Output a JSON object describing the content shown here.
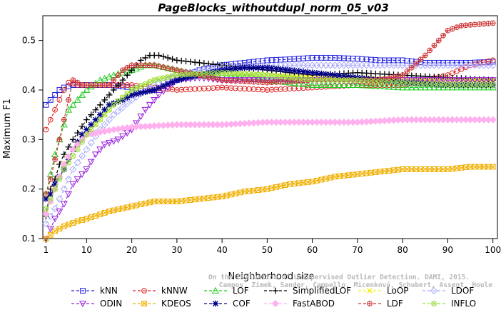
{
  "chart_data": {
    "type": "line",
    "title": "PageBlocks_withoutdupl_norm_05_v03",
    "xlabel": "Neighborhood size",
    "ylabel": "Maximum F1",
    "xlim": [
      1,
      100
    ],
    "ylim": [
      0.1,
      0.55
    ],
    "xticks": [
      1,
      10,
      20,
      30,
      40,
      50,
      60,
      70,
      80,
      90,
      100
    ],
    "yticks": [
      0.1,
      0.2,
      0.3,
      0.4,
      0.5
    ],
    "grid": false,
    "legend_placement": "bottom",
    "watermark": [
      "Campos, Zimek, Sander, Campello, Micenková, Schubert, Assent, Houle",
      "On the Evaluation of Unsupervised Outlier Detection. DAMI, 2015."
    ],
    "series": [
      {
        "name": "kNN",
        "color": "#2222dd",
        "marker": "square",
        "points": [
          [
            1,
            0.37
          ],
          [
            2,
            0.38
          ],
          [
            3,
            0.39
          ],
          [
            4,
            0.4
          ],
          [
            5,
            0.405
          ],
          [
            7,
            0.41
          ],
          [
            10,
            0.41
          ],
          [
            15,
            0.41
          ],
          [
            20,
            0.405
          ],
          [
            25,
            0.4
          ],
          [
            30,
            0.42
          ],
          [
            35,
            0.44
          ],
          [
            40,
            0.45
          ],
          [
            45,
            0.455
          ],
          [
            50,
            0.46
          ],
          [
            55,
            0.462
          ],
          [
            60,
            0.465
          ],
          [
            65,
            0.465
          ],
          [
            70,
            0.463
          ],
          [
            75,
            0.46
          ],
          [
            80,
            0.46
          ],
          [
            85,
            0.455
          ],
          [
            90,
            0.455
          ],
          [
            95,
            0.455
          ],
          [
            100,
            0.457
          ]
        ]
      },
      {
        "name": "kNNW",
        "color": "#dd2222",
        "marker": "circle",
        "points": [
          [
            1,
            0.32
          ],
          [
            2,
            0.34
          ],
          [
            3,
            0.36
          ],
          [
            4,
            0.38
          ],
          [
            5,
            0.4
          ],
          [
            6,
            0.415
          ],
          [
            8,
            0.41
          ],
          [
            10,
            0.41
          ],
          [
            15,
            0.41
          ],
          [
            20,
            0.41
          ],
          [
            25,
            0.405
          ],
          [
            30,
            0.4
          ],
          [
            40,
            0.405
          ],
          [
            50,
            0.4
          ],
          [
            60,
            0.405
          ],
          [
            70,
            0.41
          ],
          [
            80,
            0.41
          ],
          [
            85,
            0.42
          ],
          [
            90,
            0.43
          ],
          [
            95,
            0.45
          ],
          [
            100,
            0.46
          ]
        ]
      },
      {
        "name": "LOF",
        "color": "#22cc22",
        "marker": "triangle-up",
        "points": [
          [
            1,
            0.19
          ],
          [
            2,
            0.23
          ],
          [
            3,
            0.27
          ],
          [
            4,
            0.3
          ],
          [
            5,
            0.33
          ],
          [
            6,
            0.36
          ],
          [
            8,
            0.38
          ],
          [
            10,
            0.4
          ],
          [
            13,
            0.42
          ],
          [
            16,
            0.43
          ],
          [
            20,
            0.44
          ],
          [
            23,
            0.45
          ],
          [
            25,
            0.45
          ],
          [
            30,
            0.44
          ],
          [
            35,
            0.43
          ],
          [
            40,
            0.43
          ],
          [
            50,
            0.42
          ],
          [
            60,
            0.41
          ],
          [
            70,
            0.41
          ],
          [
            80,
            0.405
          ],
          [
            90,
            0.405
          ],
          [
            100,
            0.405
          ]
        ]
      },
      {
        "name": "SimplifiedLOF",
        "color": "#000000",
        "marker": "plus",
        "points": [
          [
            1,
            0.145
          ],
          [
            2,
            0.2
          ],
          [
            3,
            0.22
          ],
          [
            4,
            0.25
          ],
          [
            5,
            0.27
          ],
          [
            7,
            0.3
          ],
          [
            10,
            0.34
          ],
          [
            12,
            0.36
          ],
          [
            15,
            0.39
          ],
          [
            18,
            0.42
          ],
          [
            20,
            0.44
          ],
          [
            22,
            0.46
          ],
          [
            24,
            0.47
          ],
          [
            26,
            0.47
          ],
          [
            28,
            0.465
          ],
          [
            30,
            0.46
          ],
          [
            35,
            0.455
          ],
          [
            40,
            0.45
          ],
          [
            50,
            0.44
          ],
          [
            60,
            0.43
          ],
          [
            70,
            0.435
          ],
          [
            80,
            0.43
          ],
          [
            90,
            0.425
          ],
          [
            100,
            0.42
          ]
        ]
      },
      {
        "name": "LoOP",
        "color": "#eeee00",
        "marker": "x",
        "points": [
          [
            1,
            0.15
          ],
          [
            3,
            0.2
          ],
          [
            5,
            0.25
          ],
          [
            7,
            0.28
          ],
          [
            10,
            0.31
          ],
          [
            13,
            0.34
          ],
          [
            16,
            0.37
          ],
          [
            20,
            0.4
          ],
          [
            25,
            0.42
          ],
          [
            30,
            0.43
          ],
          [
            40,
            0.435
          ],
          [
            50,
            0.43
          ],
          [
            60,
            0.425
          ],
          [
            70,
            0.425
          ],
          [
            80,
            0.42
          ],
          [
            90,
            0.42
          ],
          [
            100,
            0.42
          ]
        ]
      },
      {
        "name": "LDOF",
        "color": "#aaaaff",
        "marker": "diamond",
        "points": [
          [
            1,
            0.13
          ],
          [
            3,
            0.16
          ],
          [
            5,
            0.2
          ],
          [
            7,
            0.24
          ],
          [
            10,
            0.28
          ],
          [
            13,
            0.32
          ],
          [
            16,
            0.35
          ],
          [
            20,
            0.38
          ],
          [
            25,
            0.41
          ],
          [
            30,
            0.43
          ],
          [
            35,
            0.44
          ],
          [
            40,
            0.445
          ],
          [
            50,
            0.45
          ],
          [
            60,
            0.45
          ],
          [
            70,
            0.45
          ],
          [
            80,
            0.45
          ],
          [
            90,
            0.45
          ],
          [
            100,
            0.45
          ]
        ]
      },
      {
        "name": "ODIN",
        "color": "#9922dd",
        "marker": "triangle-down",
        "points": [
          [
            1,
            0.1
          ],
          [
            2,
            0.12
          ],
          [
            3,
            0.14
          ],
          [
            5,
            0.17
          ],
          [
            7,
            0.21
          ],
          [
            10,
            0.24
          ],
          [
            12,
            0.27
          ],
          [
            14,
            0.29
          ],
          [
            17,
            0.3
          ],
          [
            20,
            0.32
          ],
          [
            23,
            0.36
          ],
          [
            26,
            0.39
          ],
          [
            30,
            0.42
          ],
          [
            35,
            0.425
          ],
          [
            40,
            0.42
          ],
          [
            50,
            0.42
          ],
          [
            60,
            0.42
          ],
          [
            70,
            0.42
          ],
          [
            80,
            0.42
          ],
          [
            90,
            0.42
          ],
          [
            100,
            0.42
          ]
        ]
      },
      {
        "name": "KDEOS",
        "color": "#f0b000",
        "marker": "square-x",
        "points": [
          [
            1,
            0.1
          ],
          [
            3,
            0.115
          ],
          [
            5,
            0.125
          ],
          [
            8,
            0.135
          ],
          [
            10,
            0.14
          ],
          [
            15,
            0.155
          ],
          [
            20,
            0.165
          ],
          [
            25,
            0.175
          ],
          [
            30,
            0.175
          ],
          [
            35,
            0.18
          ],
          [
            40,
            0.185
          ],
          [
            45,
            0.195
          ],
          [
            50,
            0.2
          ],
          [
            55,
            0.21
          ],
          [
            60,
            0.215
          ],
          [
            65,
            0.225
          ],
          [
            70,
            0.23
          ],
          [
            75,
            0.235
          ],
          [
            80,
            0.24
          ],
          [
            85,
            0.24
          ],
          [
            90,
            0.24
          ],
          [
            95,
            0.245
          ],
          [
            100,
            0.245
          ]
        ]
      },
      {
        "name": "COF",
        "color": "#000088",
        "marker": "star",
        "points": [
          [
            1,
            0.18
          ],
          [
            2,
            0.19
          ],
          [
            3,
            0.21
          ],
          [
            5,
            0.24
          ],
          [
            7,
            0.28
          ],
          [
            9,
            0.31
          ],
          [
            11,
            0.33
          ],
          [
            13,
            0.35
          ],
          [
            15,
            0.37
          ],
          [
            18,
            0.38
          ],
          [
            20,
            0.39
          ],
          [
            25,
            0.4
          ],
          [
            30,
            0.42
          ],
          [
            35,
            0.43
          ],
          [
            40,
            0.44
          ],
          [
            45,
            0.445
          ],
          [
            50,
            0.445
          ],
          [
            55,
            0.44
          ],
          [
            60,
            0.435
          ],
          [
            70,
            0.425
          ],
          [
            80,
            0.415
          ],
          [
            90,
            0.41
          ],
          [
            100,
            0.41
          ]
        ]
      },
      {
        "name": "FastABOD",
        "color": "#ffb0ee",
        "marker": "diamond-filled",
        "points": [
          [
            1,
            0.15
          ],
          [
            3,
            0.2
          ],
          [
            5,
            0.25
          ],
          [
            7,
            0.28
          ],
          [
            10,
            0.31
          ],
          [
            13,
            0.315
          ],
          [
            16,
            0.32
          ],
          [
            20,
            0.325
          ],
          [
            30,
            0.33
          ],
          [
            40,
            0.33
          ],
          [
            50,
            0.335
          ],
          [
            60,
            0.335
          ],
          [
            70,
            0.335
          ],
          [
            80,
            0.34
          ],
          [
            90,
            0.34
          ],
          [
            100,
            0.34
          ]
        ]
      },
      {
        "name": "LDF",
        "color": "#cc3333",
        "marker": "circle-plus",
        "points": [
          [
            1,
            0.19
          ],
          [
            2,
            0.22
          ],
          [
            3,
            0.26
          ],
          [
            4,
            0.3
          ],
          [
            5,
            0.34
          ],
          [
            6,
            0.38
          ],
          [
            7,
            0.42
          ],
          [
            9,
            0.41
          ],
          [
            10,
            0.41
          ],
          [
            15,
            0.41
          ],
          [
            18,
            0.44
          ],
          [
            20,
            0.45
          ],
          [
            25,
            0.45
          ],
          [
            30,
            0.44
          ],
          [
            35,
            0.43
          ],
          [
            40,
            0.42
          ],
          [
            50,
            0.415
          ],
          [
            60,
            0.42
          ],
          [
            70,
            0.42
          ],
          [
            75,
            0.42
          ],
          [
            80,
            0.43
          ],
          [
            82,
            0.445
          ],
          [
            85,
            0.47
          ],
          [
            88,
            0.5
          ],
          [
            90,
            0.52
          ],
          [
            93,
            0.53
          ],
          [
            100,
            0.535
          ]
        ]
      },
      {
        "name": "INFLO",
        "color": "#99dd44",
        "marker": "circle-x",
        "points": [
          [
            1,
            0.16
          ],
          [
            3,
            0.2
          ],
          [
            5,
            0.24
          ],
          [
            8,
            0.28
          ],
          [
            10,
            0.31
          ],
          [
            13,
            0.34
          ],
          [
            16,
            0.37
          ],
          [
            20,
            0.4
          ],
          [
            25,
            0.42
          ],
          [
            30,
            0.43
          ],
          [
            40,
            0.435
          ],
          [
            50,
            0.43
          ],
          [
            60,
            0.42
          ],
          [
            70,
            0.42
          ],
          [
            80,
            0.415
          ],
          [
            90,
            0.41
          ],
          [
            100,
            0.41
          ]
        ]
      }
    ]
  }
}
